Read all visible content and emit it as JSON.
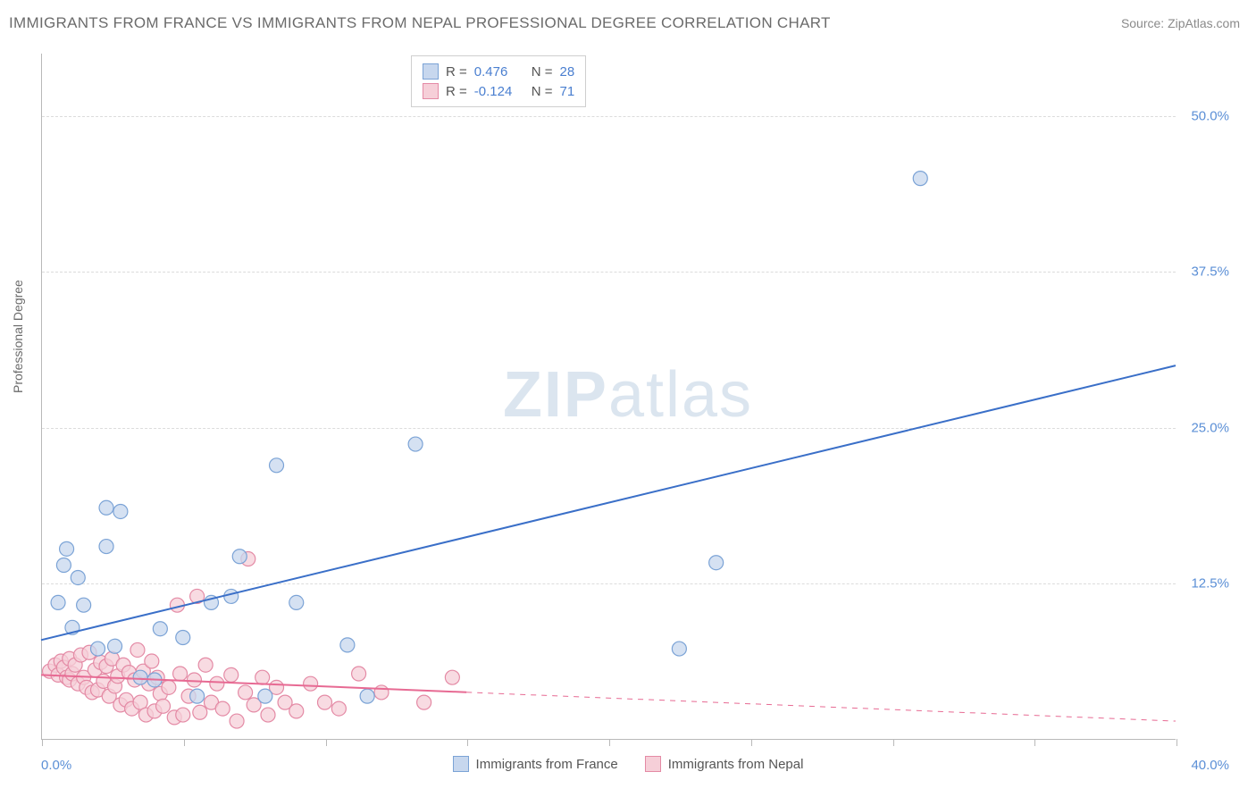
{
  "title": "IMMIGRANTS FROM FRANCE VS IMMIGRANTS FROM NEPAL PROFESSIONAL DEGREE CORRELATION CHART",
  "source": "Source: ZipAtlas.com",
  "ylabel": "Professional Degree",
  "watermark_bold": "ZIP",
  "watermark_rest": "atlas",
  "chart": {
    "type": "scatter",
    "xlim": [
      0,
      40
    ],
    "ylim": [
      0,
      55
    ],
    "x_tick_positions": [
      0,
      5,
      10,
      15,
      20,
      25,
      30,
      35,
      40
    ],
    "x_tick_labels": {
      "first": "0.0%",
      "last": "40.0%"
    },
    "y_gridlines": [
      12.5,
      25.0,
      37.5,
      50.0
    ],
    "y_tick_labels": [
      "12.5%",
      "25.0%",
      "37.5%",
      "50.0%"
    ],
    "background_color": "#ffffff",
    "grid_color": "#dcdcdc",
    "axis_color": "#b9b9b9",
    "tick_label_color": "#5b8fd6",
    "series": [
      {
        "name": "Immigrants from France",
        "color_fill": "#c7d7ee",
        "color_stroke": "#7ba3d6",
        "marker_radius": 8,
        "R": "0.476",
        "N": "28",
        "trend": {
          "x1": 0,
          "y1": 8,
          "x2": 40,
          "y2": 30,
          "color": "#3a6fc8",
          "width": 2,
          "dash_after_x": null
        },
        "points": [
          [
            0.6,
            11.0
          ],
          [
            0.8,
            14.0
          ],
          [
            0.9,
            15.3
          ],
          [
            1.3,
            13.0
          ],
          [
            1.5,
            10.8
          ],
          [
            2.3,
            18.6
          ],
          [
            2.8,
            18.3
          ],
          [
            2.3,
            15.5
          ],
          [
            1.1,
            9.0
          ],
          [
            2.0,
            7.3
          ],
          [
            2.6,
            7.5
          ],
          [
            3.5,
            5.0
          ],
          [
            4.0,
            4.8
          ],
          [
            4.2,
            8.9
          ],
          [
            5.0,
            8.2
          ],
          [
            5.5,
            3.5
          ],
          [
            6.0,
            11.0
          ],
          [
            6.7,
            11.5
          ],
          [
            7.0,
            14.7
          ],
          [
            8.3,
            22.0
          ],
          [
            7.9,
            3.5
          ],
          [
            9.0,
            11.0
          ],
          [
            10.8,
            7.6
          ],
          [
            11.5,
            3.5
          ],
          [
            13.2,
            23.7
          ],
          [
            22.5,
            7.3
          ],
          [
            23.8,
            14.2
          ],
          [
            31.0,
            45.0
          ]
        ]
      },
      {
        "name": "Immigrants from Nepal",
        "color_fill": "#f6cfd8",
        "color_stroke": "#e48aa5",
        "marker_radius": 8,
        "R": "-0.124",
        "N": "71",
        "trend": {
          "x1": 0,
          "y1": 5.2,
          "x2": 40,
          "y2": 1.5,
          "color": "#e76a93",
          "width": 2,
          "dash_after_x": 15
        },
        "points": [
          [
            0.3,
            5.5
          ],
          [
            0.5,
            6.0
          ],
          [
            0.6,
            5.2
          ],
          [
            0.7,
            6.3
          ],
          [
            0.8,
            5.8
          ],
          [
            0.9,
            5.0
          ],
          [
            1.0,
            6.5
          ],
          [
            1.0,
            4.8
          ],
          [
            1.1,
            5.3
          ],
          [
            1.2,
            6.0
          ],
          [
            1.3,
            4.5
          ],
          [
            1.4,
            6.8
          ],
          [
            1.5,
            5.0
          ],
          [
            1.6,
            4.2
          ],
          [
            1.7,
            7.0
          ],
          [
            1.8,
            3.8
          ],
          [
            1.9,
            5.6
          ],
          [
            2.0,
            4.0
          ],
          [
            2.1,
            6.2
          ],
          [
            2.2,
            4.7
          ],
          [
            2.3,
            5.9
          ],
          [
            2.4,
            3.5
          ],
          [
            2.5,
            6.5
          ],
          [
            2.6,
            4.3
          ],
          [
            2.7,
            5.1
          ],
          [
            2.8,
            2.8
          ],
          [
            2.9,
            6.0
          ],
          [
            3.0,
            3.2
          ],
          [
            3.1,
            5.4
          ],
          [
            3.2,
            2.5
          ],
          [
            3.3,
            4.8
          ],
          [
            3.4,
            7.2
          ],
          [
            3.5,
            3.0
          ],
          [
            3.6,
            5.5
          ],
          [
            3.7,
            2.0
          ],
          [
            3.8,
            4.5
          ],
          [
            3.9,
            6.3
          ],
          [
            4.0,
            2.3
          ],
          [
            4.1,
            5.0
          ],
          [
            4.2,
            3.7
          ],
          [
            4.3,
            2.7
          ],
          [
            4.5,
            4.2
          ],
          [
            4.7,
            1.8
          ],
          [
            4.8,
            10.8
          ],
          [
            4.9,
            5.3
          ],
          [
            5.0,
            2.0
          ],
          [
            5.2,
            3.5
          ],
          [
            5.4,
            4.8
          ],
          [
            5.6,
            2.2
          ],
          [
            5.8,
            6.0
          ],
          [
            5.5,
            11.5
          ],
          [
            6.0,
            3.0
          ],
          [
            6.2,
            4.5
          ],
          [
            6.4,
            2.5
          ],
          [
            6.7,
            5.2
          ],
          [
            6.9,
            1.5
          ],
          [
            7.2,
            3.8
          ],
          [
            7.3,
            14.5
          ],
          [
            7.5,
            2.8
          ],
          [
            7.8,
            5.0
          ],
          [
            8.0,
            2.0
          ],
          [
            8.3,
            4.2
          ],
          [
            8.6,
            3.0
          ],
          [
            9.0,
            2.3
          ],
          [
            9.5,
            4.5
          ],
          [
            10.0,
            3.0
          ],
          [
            10.5,
            2.5
          ],
          [
            11.2,
            5.3
          ],
          [
            12.0,
            3.8
          ],
          [
            13.5,
            3.0
          ],
          [
            14.5,
            5.0
          ]
        ]
      }
    ]
  },
  "legend_top": {
    "r_label": "R =",
    "n_label": "N ="
  },
  "legend_bottom": [
    {
      "label": "Immigrants from France",
      "fill": "#c7d7ee",
      "stroke": "#7ba3d6"
    },
    {
      "label": "Immigrants from Nepal",
      "fill": "#f6cfd8",
      "stroke": "#e48aa5"
    }
  ]
}
